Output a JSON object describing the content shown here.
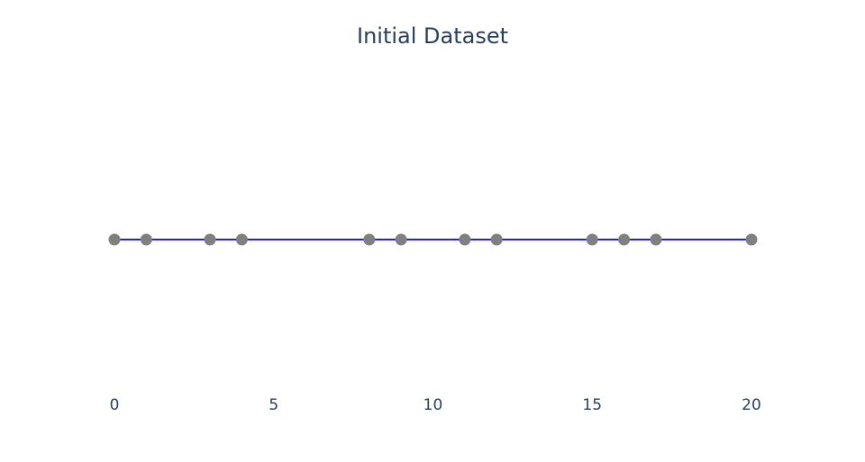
{
  "chart_data": {
    "type": "line",
    "title": "Initial Dataset",
    "xlabel": "",
    "ylabel": "",
    "x": [
      0,
      1,
      3,
      4,
      8,
      9,
      11,
      12,
      15,
      16,
      17,
      20
    ],
    "y": [
      0,
      0,
      0,
      0,
      0,
      0,
      0,
      0,
      0,
      0,
      0,
      0
    ],
    "xlim": [
      0,
      20
    ],
    "x_ticks": [
      "0",
      "5",
      "10",
      "15",
      "20"
    ],
    "x_tick_values": [
      0,
      5,
      10,
      15,
      20
    ],
    "y_axis_visible": false,
    "grid": false,
    "mode": "lines+markers",
    "line_color": "#2222dd",
    "marker_color": "#808080"
  }
}
